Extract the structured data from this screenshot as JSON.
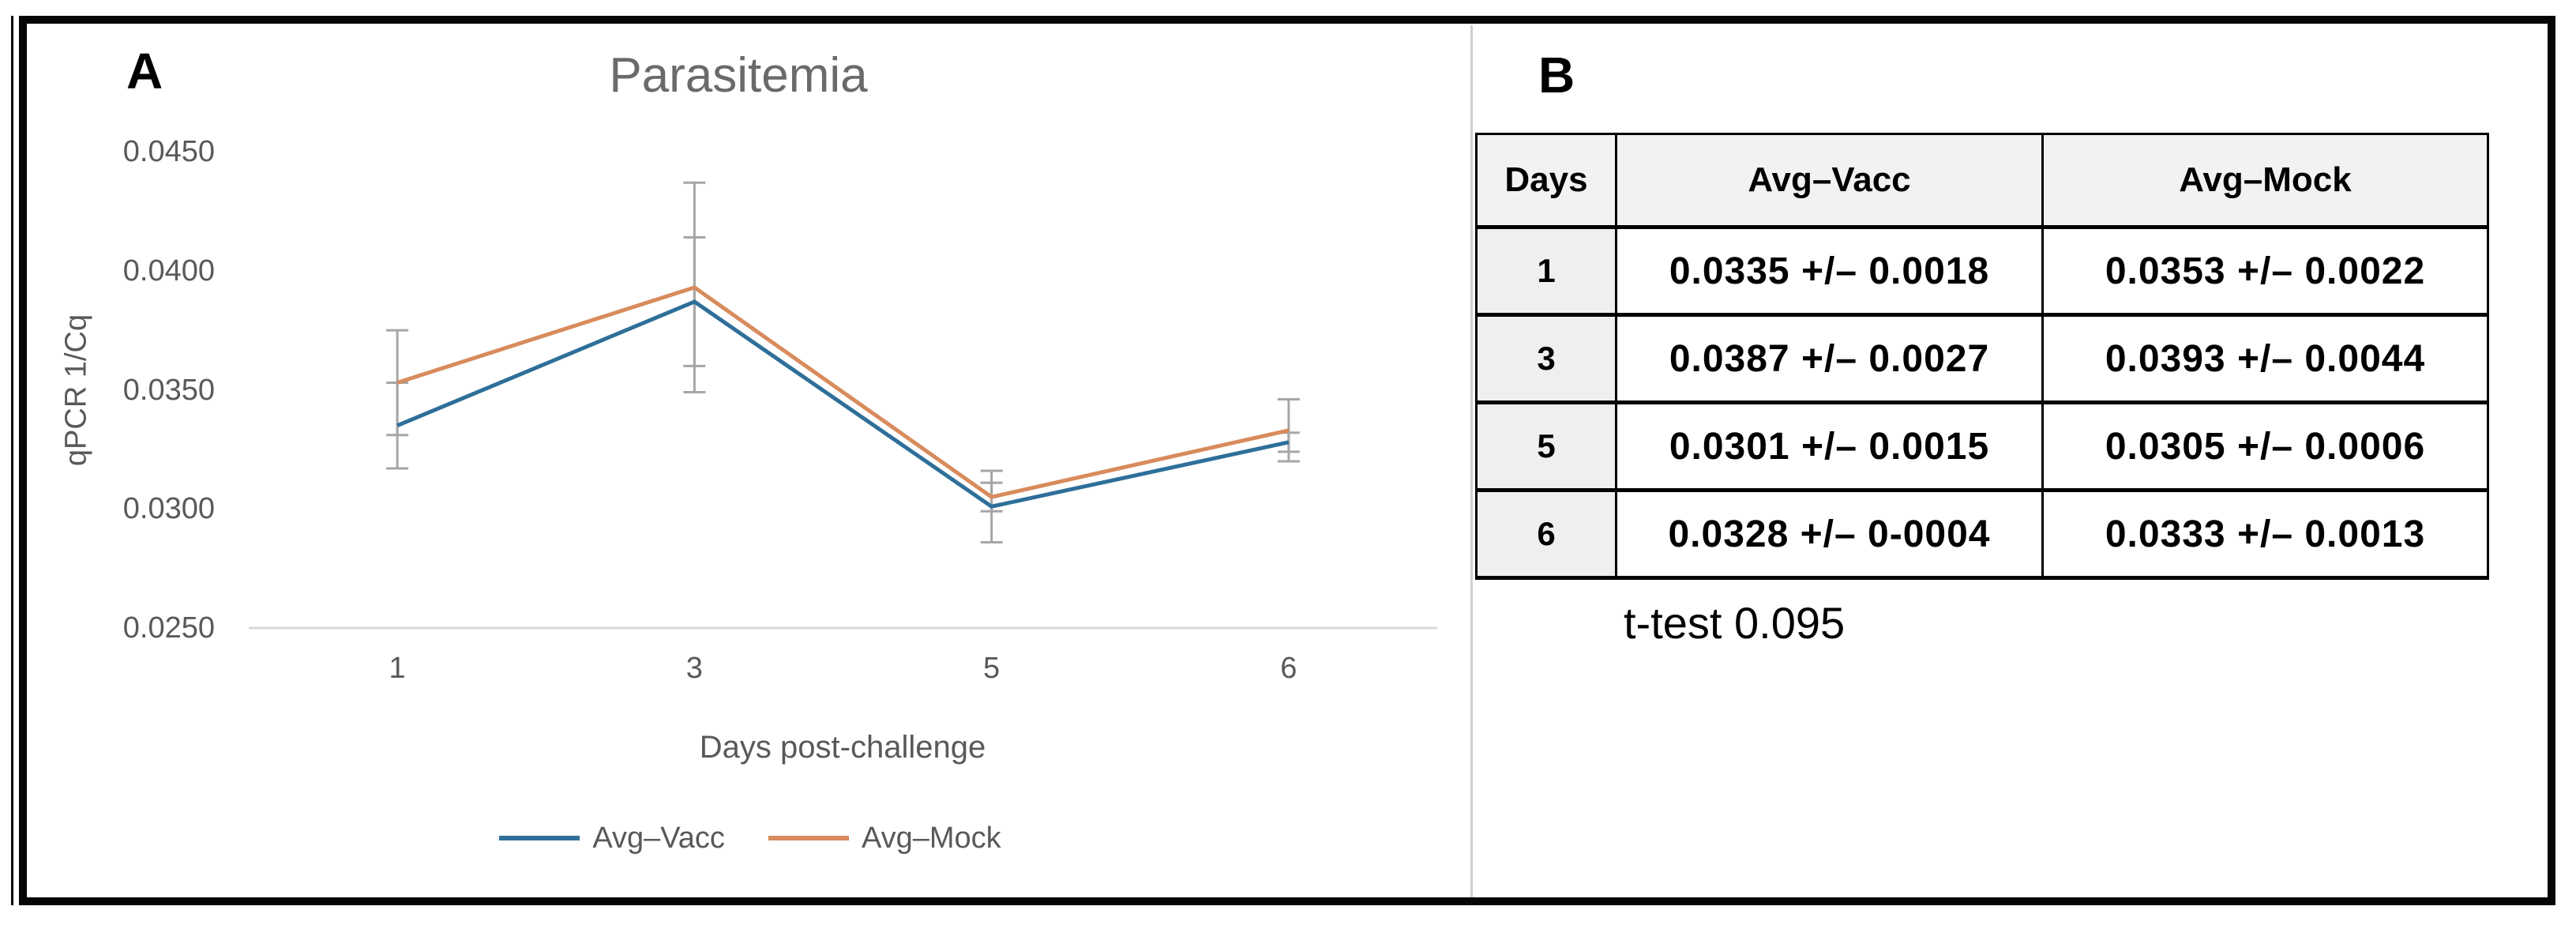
{
  "panels": {
    "a_label": "A",
    "b_label": "B"
  },
  "chart_data": {
    "type": "line",
    "title": "Parasitemia",
    "xlabel": "Days post-challenge",
    "ylabel": "qPCR 1/Cq",
    "categories": [
      "1",
      "3",
      "5",
      "6"
    ],
    "y_tick_labels": [
      "0.0450",
      "0.0400",
      "0.0350",
      "0.0300",
      "0.0250"
    ],
    "ylim": [
      0.025,
      0.045
    ],
    "grid": false,
    "legend_position": "bottom",
    "axis_line_color": "#d9d9d9",
    "error_bar_color": "#a6a6a6",
    "series": [
      {
        "name": "Avg–Vacc",
        "color": "#2e6f99",
        "values": [
          0.0335,
          0.0387,
          0.0301,
          0.0328
        ],
        "errors": [
          0.0018,
          0.0027,
          0.0015,
          0.0004
        ]
      },
      {
        "name": "Avg–Mock",
        "color": "#d88b5c",
        "values": [
          0.0353,
          0.0393,
          0.0305,
          0.0333
        ],
        "errors": [
          0.0022,
          0.0044,
          0.0006,
          0.0013
        ]
      }
    ]
  },
  "table": {
    "columns": [
      "Days",
      "Avg–Vacc",
      "Avg–Mock"
    ],
    "rows": [
      {
        "day": "1",
        "vacc": "0.0335 +/– 0.0018",
        "mock": "0.0353 +/– 0.0022"
      },
      {
        "day": "3",
        "vacc": "0.0387 +/– 0.0027",
        "mock": "0.0393 +/– 0.0044"
      },
      {
        "day": "5",
        "vacc": "0.0301 +/– 0.0015",
        "mock": "0.0305 +/– 0.0006"
      },
      {
        "day": "6",
        "vacc": "0.0328 +/– 0-0004",
        "mock": "0.0333 +/– 0.0013"
      }
    ],
    "note": "t-test 0.095"
  }
}
